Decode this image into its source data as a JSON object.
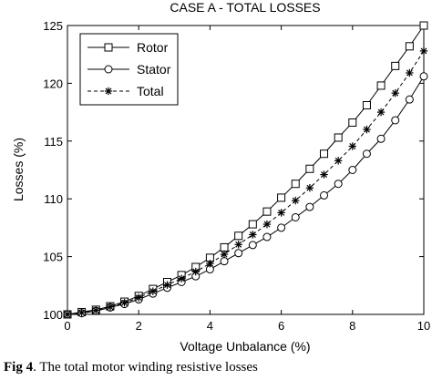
{
  "caption": {
    "label": "Fig 4",
    "text": ". The total motor winding resistive losses"
  },
  "chart_data": {
    "type": "line",
    "title": "CASE A - TOTAL LOSSES",
    "xlabel": "Voltage Unbalance (%)",
    "ylabel": "Losses (%)",
    "xlim": [
      0,
      10
    ],
    "ylim": [
      100,
      125
    ],
    "xticks": [
      "0",
      "2",
      "4",
      "6",
      "8",
      "10"
    ],
    "yticks": [
      "100",
      "105",
      "110",
      "115",
      "120",
      "125"
    ],
    "grid": false,
    "legend_position": "top-left",
    "x": [
      0,
      0.4,
      0.8,
      1.2,
      1.6,
      2.0,
      2.4,
      2.8,
      3.2,
      3.6,
      4.0,
      4.4,
      4.8,
      5.2,
      5.6,
      6.0,
      6.4,
      6.8,
      7.2,
      7.6,
      8.0,
      8.4,
      8.8,
      9.2,
      9.6,
      10.0
    ],
    "series": [
      {
        "name": "Rotor",
        "marker": "square",
        "line": "solid",
        "values": [
          100,
          100.2,
          100.4,
          100.7,
          101.1,
          101.6,
          102.2,
          102.8,
          103.4,
          104.1,
          104.9,
          105.8,
          106.8,
          107.8,
          108.9,
          110.1,
          111.3,
          112.6,
          113.9,
          115.3,
          116.6,
          118.1,
          119.8,
          121.5,
          123.2,
          125.0
        ]
      },
      {
        "name": "Stator",
        "marker": "circle",
        "line": "solid",
        "values": [
          100,
          100.1,
          100.3,
          100.6,
          100.9,
          101.3,
          101.8,
          102.3,
          102.8,
          103.3,
          103.9,
          104.6,
          105.3,
          106.0,
          106.7,
          107.5,
          108.4,
          109.3,
          110.3,
          111.3,
          112.5,
          113.9,
          115.2,
          116.8,
          118.6,
          120.6
        ]
      },
      {
        "name": "Total",
        "marker": "asterisk",
        "line": "dashed",
        "values": [
          100,
          100.15,
          100.35,
          100.65,
          101.0,
          101.45,
          102.0,
          102.55,
          103.1,
          103.7,
          104.4,
          105.2,
          106.05,
          106.9,
          107.8,
          108.8,
          109.85,
          110.95,
          112.1,
          113.3,
          114.55,
          116.0,
          117.5,
          119.15,
          120.9,
          122.8
        ]
      }
    ]
  }
}
